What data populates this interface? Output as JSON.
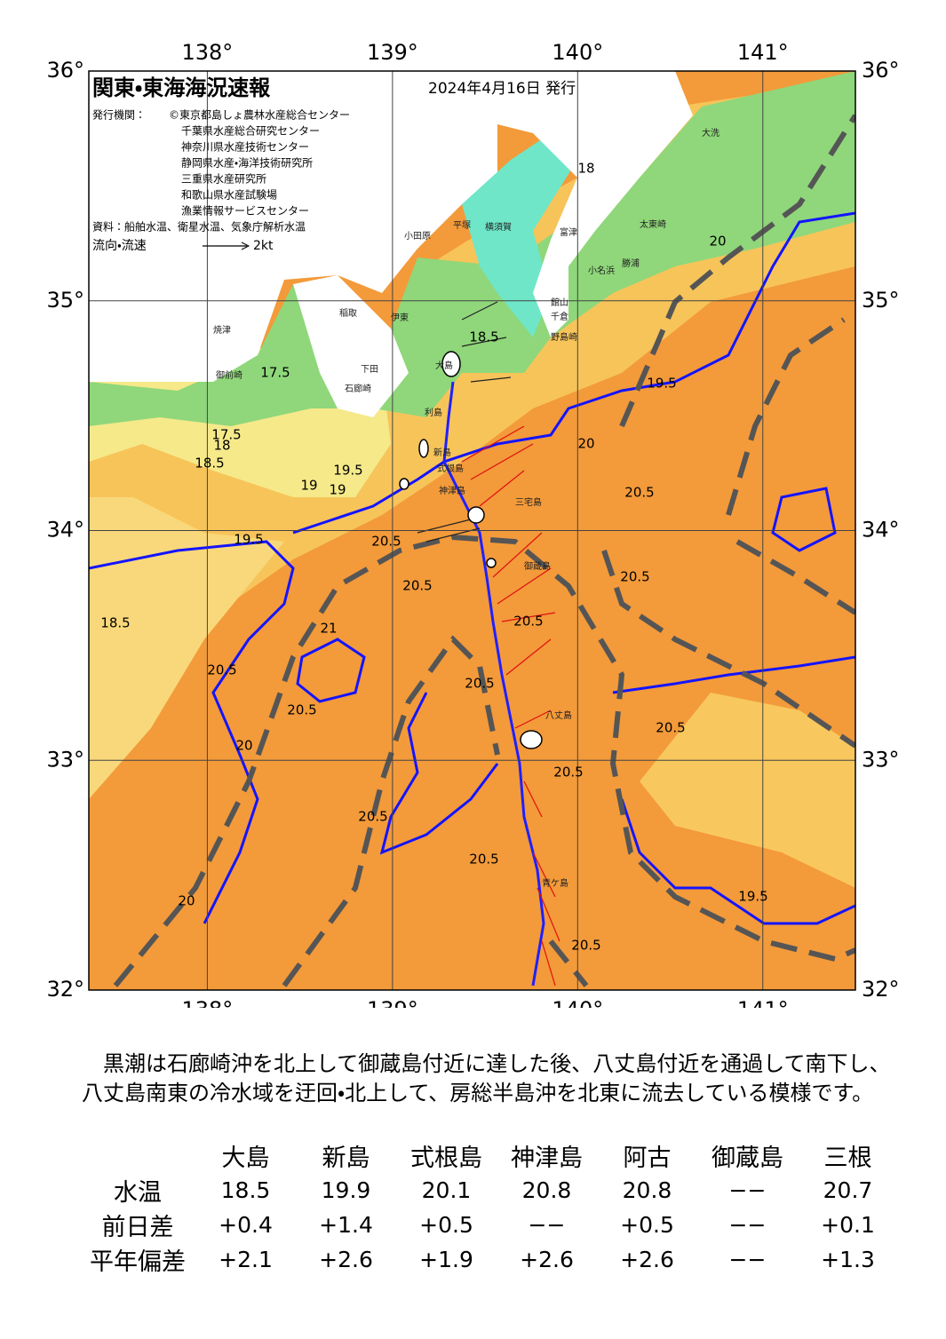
{
  "map": {
    "title": "関東・東海海況速報",
    "date": "2024年4月16日 発行",
    "issuer_label": "発行機関：",
    "issuers": [
      "©東京都島しょ農林水産総合センター",
      "千葉県水産総合研究センター",
      "神奈川県水産技術センター",
      "静岡県水産・海洋技術研究所",
      "三重県水産研究所",
      "和歌山県水産試験場",
      "漁業情報サービスセンター"
    ],
    "source": "資料：船舶水温、衛星水温、気象庁解析水温",
    "flow_legend": "流向・流速",
    "flow_unit": "2kt",
    "lonlim": [
      137.36,
      141.5
    ],
    "latlim": [
      32,
      36
    ],
    "lon_ticks": [
      {
        "value": 138,
        "label": "138°"
      },
      {
        "value": 139,
        "label": "139°"
      },
      {
        "value": 140,
        "label": "140°"
      },
      {
        "value": 141,
        "label": "141°"
      }
    ],
    "lat_ticks": [
      {
        "value": 32,
        "label": "32°"
      },
      {
        "value": 33,
        "label": "33°"
      },
      {
        "value": 34,
        "label": "34°"
      },
      {
        "value": 35,
        "label": "35°"
      },
      {
        "value": 36,
        "label": "36°"
      }
    ],
    "place_names": [
      "大島",
      "利島",
      "新島",
      "式根島",
      "神津島",
      "三宅島",
      "御蔵島",
      "八丈島",
      "青ケ島",
      "石廊崎",
      "野島崎",
      "大洗",
      "太東崎",
      "勝浦",
      "小名浜",
      "横須賀",
      "館山",
      "千倉",
      "富津",
      "平塚",
      "小田原",
      "伊東",
      "稲取",
      "下田",
      "御前崎",
      "焼津"
    ],
    "contour_labels": [
      17.5,
      17.5,
      18,
      18,
      18.5,
      18.5,
      18.5,
      19,
      19,
      19.5,
      19.5,
      19.5,
      19.5,
      20,
      20,
      20,
      20,
      20.5,
      20.5,
      20.5,
      20.5,
      20.5,
      20.5,
      20.5,
      20.5,
      20.5,
      20.5,
      20.5,
      20.5,
      20.5,
      21
    ]
  },
  "summary": "黒潮は石廊崎沖を北上して御蔵島付近に達した後、八丈島付近を通過して南下し、八丈島南東の冷水域を迂回・北上して、房総半島沖を北東に流去している模様です。",
  "table": {
    "columns": [
      "大島",
      "新島",
      "式根島",
      "神津島",
      "阿古",
      "御蔵島",
      "三根"
    ],
    "rows": [
      [
        "水温",
        "18.5",
        "19.9",
        "20.1",
        "20.8",
        "20.8",
        "−−",
        "20.7"
      ],
      [
        "前日差",
        "+0.4",
        "+1.4",
        "+0.5",
        "−−",
        "+0.5",
        "−−",
        "+0.1"
      ],
      [
        "平年偏差",
        "+2.1",
        "+2.6",
        "+1.9",
        "+2.6",
        "+2.6",
        "−−",
        "+1.3"
      ]
    ]
  }
}
